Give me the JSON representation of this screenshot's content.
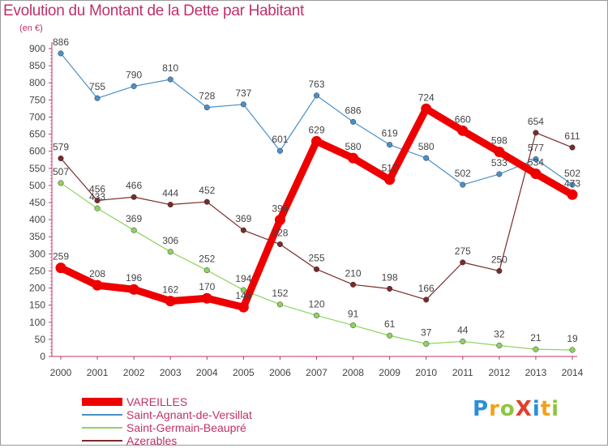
{
  "title": "Evolution du Montant de la Dette par Habitant",
  "unit": "(en €)",
  "logo": {
    "text": "ProXiti",
    "letters": [
      {
        "ch": "P",
        "color": "#2b8fd6"
      },
      {
        "ch": "r",
        "color": "#f0a21c"
      },
      {
        "ch": "o",
        "color": "#8dc63f"
      },
      {
        "ch": "X",
        "color": "#e0412a"
      },
      {
        "ch": "i",
        "color": "#2b8fd6"
      },
      {
        "ch": "t",
        "color": "#f0a21c"
      },
      {
        "ch": "i",
        "color": "#8dc63f"
      }
    ]
  },
  "chart_data": {
    "type": "line",
    "x": [
      2000,
      2001,
      2002,
      2003,
      2004,
      2005,
      2006,
      2007,
      2008,
      2009,
      2010,
      2011,
      2012,
      2013,
      2014
    ],
    "ylim": [
      0,
      900
    ],
    "yticks": [
      0,
      50,
      100,
      150,
      200,
      250,
      300,
      350,
      400,
      450,
      500,
      550,
      600,
      650,
      700,
      750,
      800,
      850,
      900
    ],
    "grid": false,
    "legend_position": "bottom-left",
    "series": [
      {
        "name": "VAREILLES",
        "color": "#ee0000",
        "values": [
          259,
          208,
          196,
          162,
          170,
          144,
          399,
          629,
          580,
          517,
          724,
          660,
          598,
          534,
          473
        ]
      },
      {
        "name": "Saint-Agnant-de-Versillat",
        "color": "#4a90c8",
        "values": [
          886,
          755,
          790,
          810,
          728,
          737,
          601,
          763,
          686,
          619,
          580,
          502,
          533,
          577,
          502
        ]
      },
      {
        "name": "Saint-Germain-Beaupré",
        "color": "#8dd35f",
        "values": [
          507,
          433,
          369,
          306,
          252,
          194,
          152,
          120,
          91,
          61,
          37,
          44,
          32,
          21,
          19
        ]
      },
      {
        "name": "Azerables",
        "color": "#7a2a2a",
        "values": [
          579,
          456,
          466,
          444,
          452,
          369,
          328,
          255,
          210,
          198,
          166,
          275,
          250,
          654,
          611
        ]
      }
    ]
  }
}
